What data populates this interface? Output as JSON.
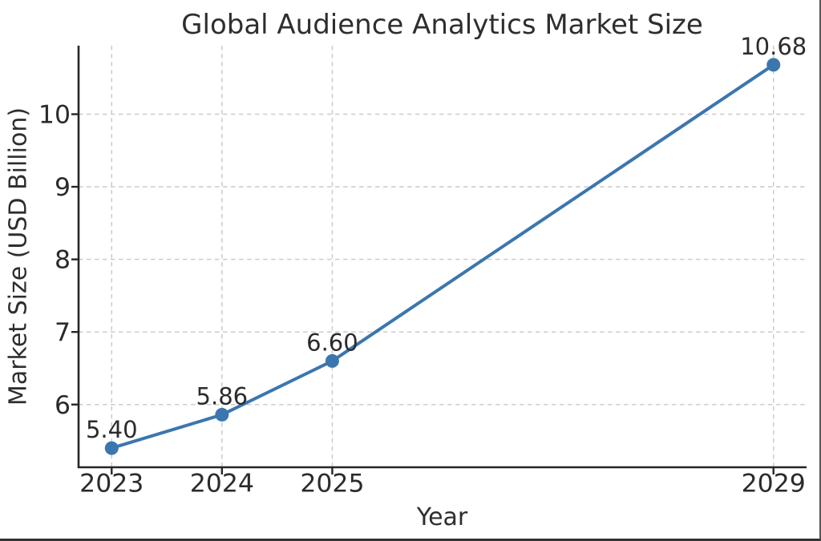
{
  "chart_data": {
    "type": "line",
    "title": "Global Audience Analytics Market Size",
    "xlabel": "Year",
    "ylabel": "Market Size (USD Billion)",
    "x": [
      2023,
      2024,
      2025,
      2029
    ],
    "values": [
      5.4,
      5.86,
      6.6,
      10.68
    ],
    "point_labels": [
      "5.40",
      "5.86",
      "6.60",
      "10.68"
    ],
    "xtick_labels": [
      "2023",
      "2024",
      "2025",
      "2029"
    ],
    "xticks": [
      2023,
      2024,
      2025,
      2029
    ],
    "ytick_labels": [
      "6",
      "7",
      "8",
      "9",
      "10"
    ],
    "yticks": [
      6,
      7,
      8,
      9,
      10
    ],
    "xlim": [
      2022.7,
      2029.3
    ],
    "ylim": [
      5.136,
      10.944
    ],
    "grid": true,
    "legend": false,
    "line_color": "#3b76af",
    "grid_color": "#cccccc",
    "axis_color": "#262626",
    "text_color": "#2b2b2b"
  }
}
